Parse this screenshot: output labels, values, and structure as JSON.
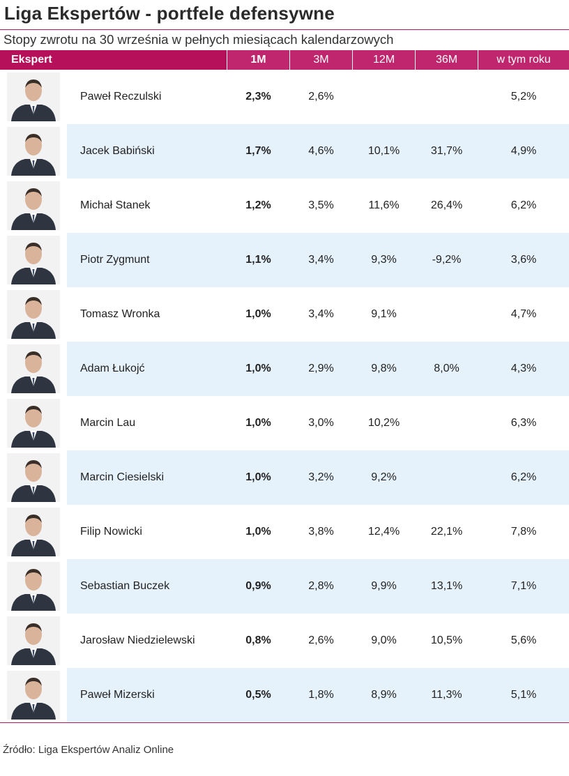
{
  "title": "Liga Ekspertów - portfele defensywne",
  "subtitle": "Stopy zwrotu na 30 września w pełnych miesiącach kalendarzowych",
  "source": "Źródło: Liga Ekspertów Analiz Online",
  "colors": {
    "header": "#b7105a",
    "header_alt": "#c0266d",
    "row_alt": "#e6f2fb",
    "rule": "#b31b5e"
  },
  "chart_data": {
    "type": "table",
    "columns": [
      "Ekspert",
      "1M",
      "3M",
      "12M",
      "36M",
      "w tym roku"
    ],
    "rows": [
      {
        "name": "Paweł Reczulski",
        "m1": "2,3%",
        "m3": "2,6%",
        "m12": "",
        "m36": "",
        "ytd": "5,2%"
      },
      {
        "name": "Jacek Babiński",
        "m1": "1,7%",
        "m3": "4,6%",
        "m12": "10,1%",
        "m36": "31,7%",
        "ytd": "4,9%"
      },
      {
        "name": "Michał Stanek",
        "m1": "1,2%",
        "m3": "3,5%",
        "m12": "11,6%",
        "m36": "26,4%",
        "ytd": "6,2%"
      },
      {
        "name": "Piotr Zygmunt",
        "m1": "1,1%",
        "m3": "3,4%",
        "m12": "9,3%",
        "m36": "-9,2%",
        "ytd": "3,6%"
      },
      {
        "name": "Tomasz Wronka",
        "m1": "1,0%",
        "m3": "3,4%",
        "m12": "9,1%",
        "m36": "",
        "ytd": "4,7%"
      },
      {
        "name": "Adam Łukojć",
        "m1": "1,0%",
        "m3": "2,9%",
        "m12": "9,8%",
        "m36": "8,0%",
        "ytd": "4,3%"
      },
      {
        "name": "Marcin Lau",
        "m1": "1,0%",
        "m3": "3,0%",
        "m12": "10,2%",
        "m36": "",
        "ytd": "6,3%"
      },
      {
        "name": "Marcin Ciesielski",
        "m1": "1,0%",
        "m3": "3,2%",
        "m12": "9,2%",
        "m36": "",
        "ytd": "6,2%"
      },
      {
        "name": "Filip Nowicki",
        "m1": "1,0%",
        "m3": "3,8%",
        "m12": "12,4%",
        "m36": "22,1%",
        "ytd": "7,8%"
      },
      {
        "name": "Sebastian Buczek",
        "m1": "0,9%",
        "m3": "2,8%",
        "m12": "9,9%",
        "m36": "13,1%",
        "ytd": "7,1%"
      },
      {
        "name": "Jarosław Niedzielewski",
        "m1": "0,8%",
        "m3": "2,6%",
        "m12": "9,0%",
        "m36": "10,5%",
        "ytd": "5,6%"
      },
      {
        "name": "Paweł Mizerski",
        "m1": "0,5%",
        "m3": "1,8%",
        "m12": "8,9%",
        "m36": "11,3%",
        "ytd": "5,1%"
      }
    ]
  }
}
